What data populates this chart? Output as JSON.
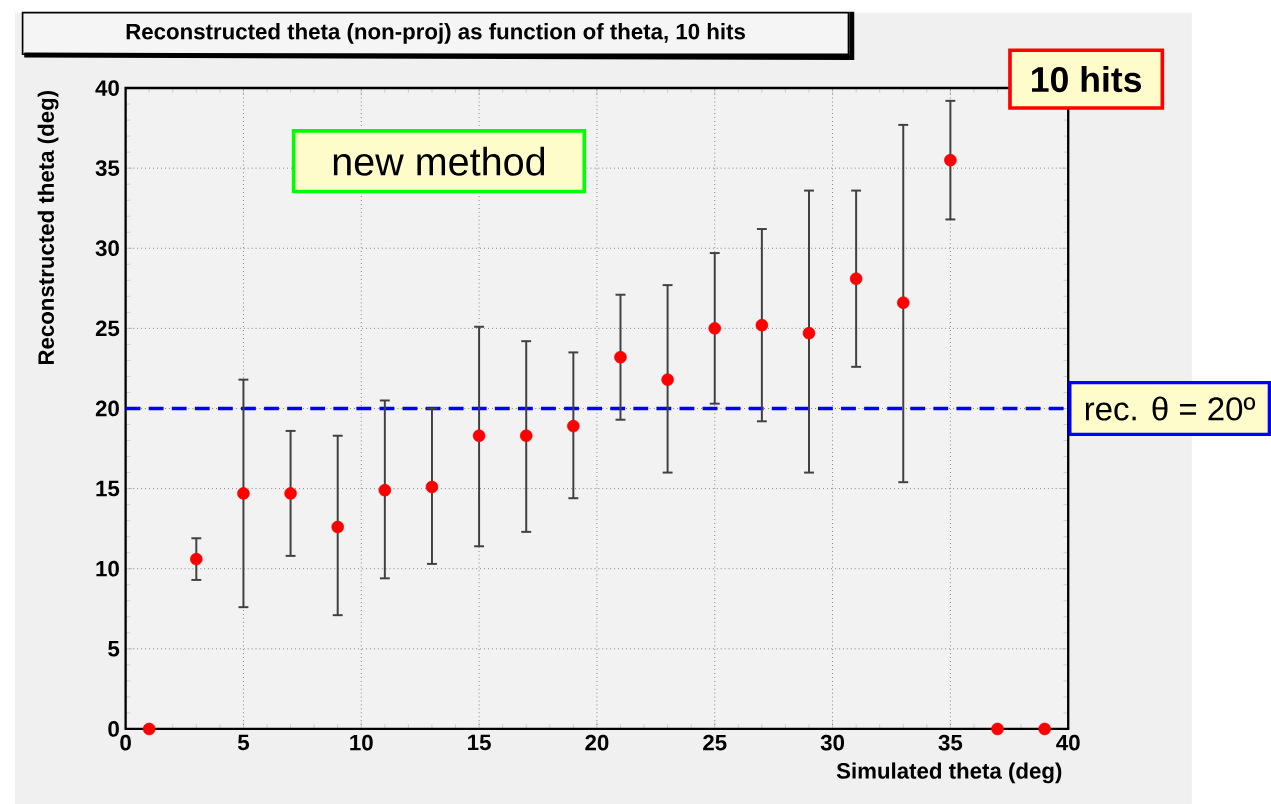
{
  "chart_data": {
    "type": "scatter",
    "title": "Reconstructed theta (non-proj) as function of theta, 10 hits",
    "xlabel": "Simulated theta (deg)",
    "ylabel": "Reconstructed theta (deg)",
    "annotations": [
      "new method",
      "10 hits"
    ],
    "x": [
      1,
      3,
      5,
      7,
      9,
      11,
      13,
      15,
      17,
      19,
      21,
      23,
      25,
      27,
      29,
      31,
      33,
      35,
      37,
      39
    ],
    "values": [
      0,
      10.6,
      14.7,
      14.7,
      12.6,
      14.9,
      15.1,
      18.3,
      18.3,
      18.9,
      23.2,
      21.8,
      25.0,
      25.2,
      24.7,
      28.1,
      26.6,
      35.5,
      0,
      0
    ],
    "errors": [
      null,
      [
        9.3,
        11.9
      ],
      [
        7.6,
        21.8
      ],
      [
        10.8,
        18.6
      ],
      [
        7.1,
        18.3
      ],
      [
        9.4,
        20.5
      ],
      [
        10.3,
        20.0
      ],
      [
        11.4,
        25.1
      ],
      [
        12.3,
        24.2
      ],
      [
        14.4,
        23.5
      ],
      [
        19.3,
        27.1
      ],
      [
        16.0,
        27.7
      ],
      [
        20.3,
        29.7
      ],
      [
        19.2,
        31.2
      ],
      [
        16.0,
        33.6
      ],
      [
        22.6,
        33.6
      ],
      [
        15.4,
        37.7
      ],
      [
        31.8,
        39.2
      ],
      null,
      null
    ],
    "color": "#ff0000",
    "marker": "circle",
    "grid": true,
    "xlim": [
      0,
      40
    ],
    "ylim": [
      0,
      40
    ],
    "xticks": [
      0,
      5,
      10,
      15,
      20,
      25,
      30,
      35,
      40
    ],
    "yticks": [
      0,
      5,
      10,
      15,
      20,
      25,
      30,
      35,
      40
    ],
    "ref_lines": [
      {
        "axis": "y",
        "value": 20,
        "label": "rec. θ = 20º",
        "color": "#0000ff",
        "line_style": "dashed"
      }
    ]
  }
}
